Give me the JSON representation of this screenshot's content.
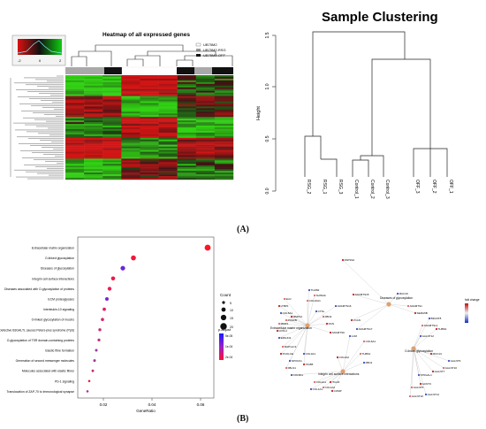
{
  "figure": {
    "panel_a_label": "(A)",
    "panel_b_label": "(B)"
  },
  "heatmap": {
    "title": "Heatmap of all expressed genes",
    "legend": [
      "UB75M2",
      "UB75M2-RSG",
      "UB75M2-OFF"
    ],
    "key_ticks": [
      "-2",
      "0",
      "2"
    ]
  },
  "clustering": {
    "title": "Sample Clustering",
    "ylabel": "Height",
    "yticks": [
      "0.0",
      "0.5",
      "1.0",
      "1.5"
    ],
    "leaves": [
      "RSG_2",
      "RSG_1",
      "RSG_3",
      "Control_1",
      "Control_2",
      "Control_3",
      "OFF_3",
      "OFF_2",
      "OFF_1"
    ]
  },
  "dotplot": {
    "xlabel": "GeneRatio",
    "xticks": [
      "0.02",
      "0.04",
      "0.06"
    ],
    "terms": [
      "Extracellular matrix organization",
      "O-linked glycosylation",
      "Diseases of glycosylation",
      "Integrin cell surface interactions",
      "Diseases associated with O-glycosylation of proteins",
      "ECM proteoglycans",
      "Interleukin-10 signaling",
      "O-linked glycosylation of mucins",
      "Defective B3GALTL causes Peters-plus syndrome (PpS)",
      "O-glycosylation of TSR domain-containing proteins",
      "Elastic fibre formation",
      "Generation of second messenger molecules",
      "Molecules associated with elastic fibres",
      "PD-1 signaling",
      "Translocation of ZAP-70 to Immunological synapse"
    ],
    "count_title": "Count",
    "count_labels": [
      "5",
      "10",
      "15",
      "20"
    ],
    "padj_title": "p.adjust",
    "padj_labels": [
      "5e-05",
      "1e-04",
      "2e-04"
    ]
  },
  "network": {
    "hubs": [
      "Extracellular matrix organization",
      "Diseases of glycosylation",
      "O-linked glycosylation",
      "Integrin cell surface interactions"
    ],
    "genes": [
      "PAPSS2",
      "TGFB2",
      "SHISHA",
      "ADAMTS15",
      "ADAMTS16",
      "COL10A1",
      "VCAN",
      "MUC16",
      "ADAMTS1",
      "SEMA5B",
      "B3GNT8",
      "ADAMTSL1",
      "THBS2",
      "GALNT12",
      "ELN",
      "LTBP1",
      "COL5A1",
      "PDGFB",
      "MMP14",
      "CTSL",
      "FBN2",
      "DCN",
      "ADAMTS17",
      "MMP1",
      "ADAMTS9",
      "LUM",
      "COL6A1",
      "COL4A2",
      "EMILIN2",
      "MAP1LC3",
      "PCOLCE",
      "SPOCK1",
      "FBLN1",
      "ITGB5",
      "COL8A1",
      "COL4A1",
      "ITGA5",
      "COL1A1",
      "COL1A2",
      "COMP",
      "FBN1",
      "THBS1",
      "MUC13",
      "GALNT6",
      "GALNT10",
      "GALNT7",
      "ST6GAL1",
      "GALNT5",
      "GCNT3",
      "GALNT14",
      "GALNT16",
      "LOXL1",
      "COL3A1"
    ],
    "fc_title": "fold change"
  }
}
